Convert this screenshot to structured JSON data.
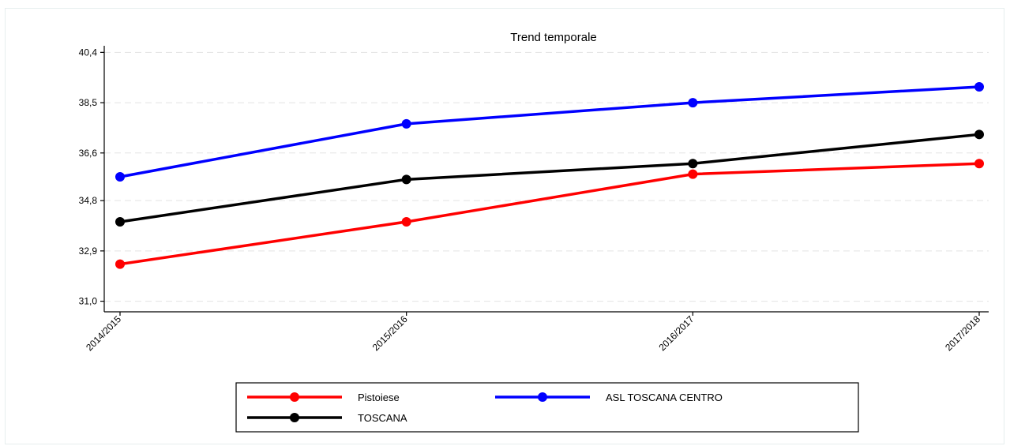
{
  "chart_data": {
    "type": "line",
    "title": "Trend temporale",
    "xlabel": "",
    "ylabel": "",
    "categories": [
      "2014/2015",
      "2015/2016",
      "2016/2017",
      "2017/2018"
    ],
    "y_ticks": [
      31.0,
      32.9,
      34.8,
      36.6,
      38.5,
      40.4
    ],
    "y_tick_labels": [
      "31,0",
      "32,9",
      "34,8",
      "36,6",
      "38,5",
      "40,4"
    ],
    "ylim": [
      30.6,
      40.5
    ],
    "grid": true,
    "legend_position": "bottom",
    "series": [
      {
        "name": "Pistoiese",
        "color": "#ff0000",
        "values": [
          32.4,
          34.0,
          35.8,
          36.2
        ]
      },
      {
        "name": "ASL TOSCANA CENTRO",
        "color": "#0000ff",
        "values": [
          35.7,
          37.7,
          38.5,
          39.1
        ]
      },
      {
        "name": "TOSCANA",
        "color": "#000000",
        "values": [
          34.0,
          35.6,
          36.2,
          37.3
        ]
      }
    ]
  }
}
